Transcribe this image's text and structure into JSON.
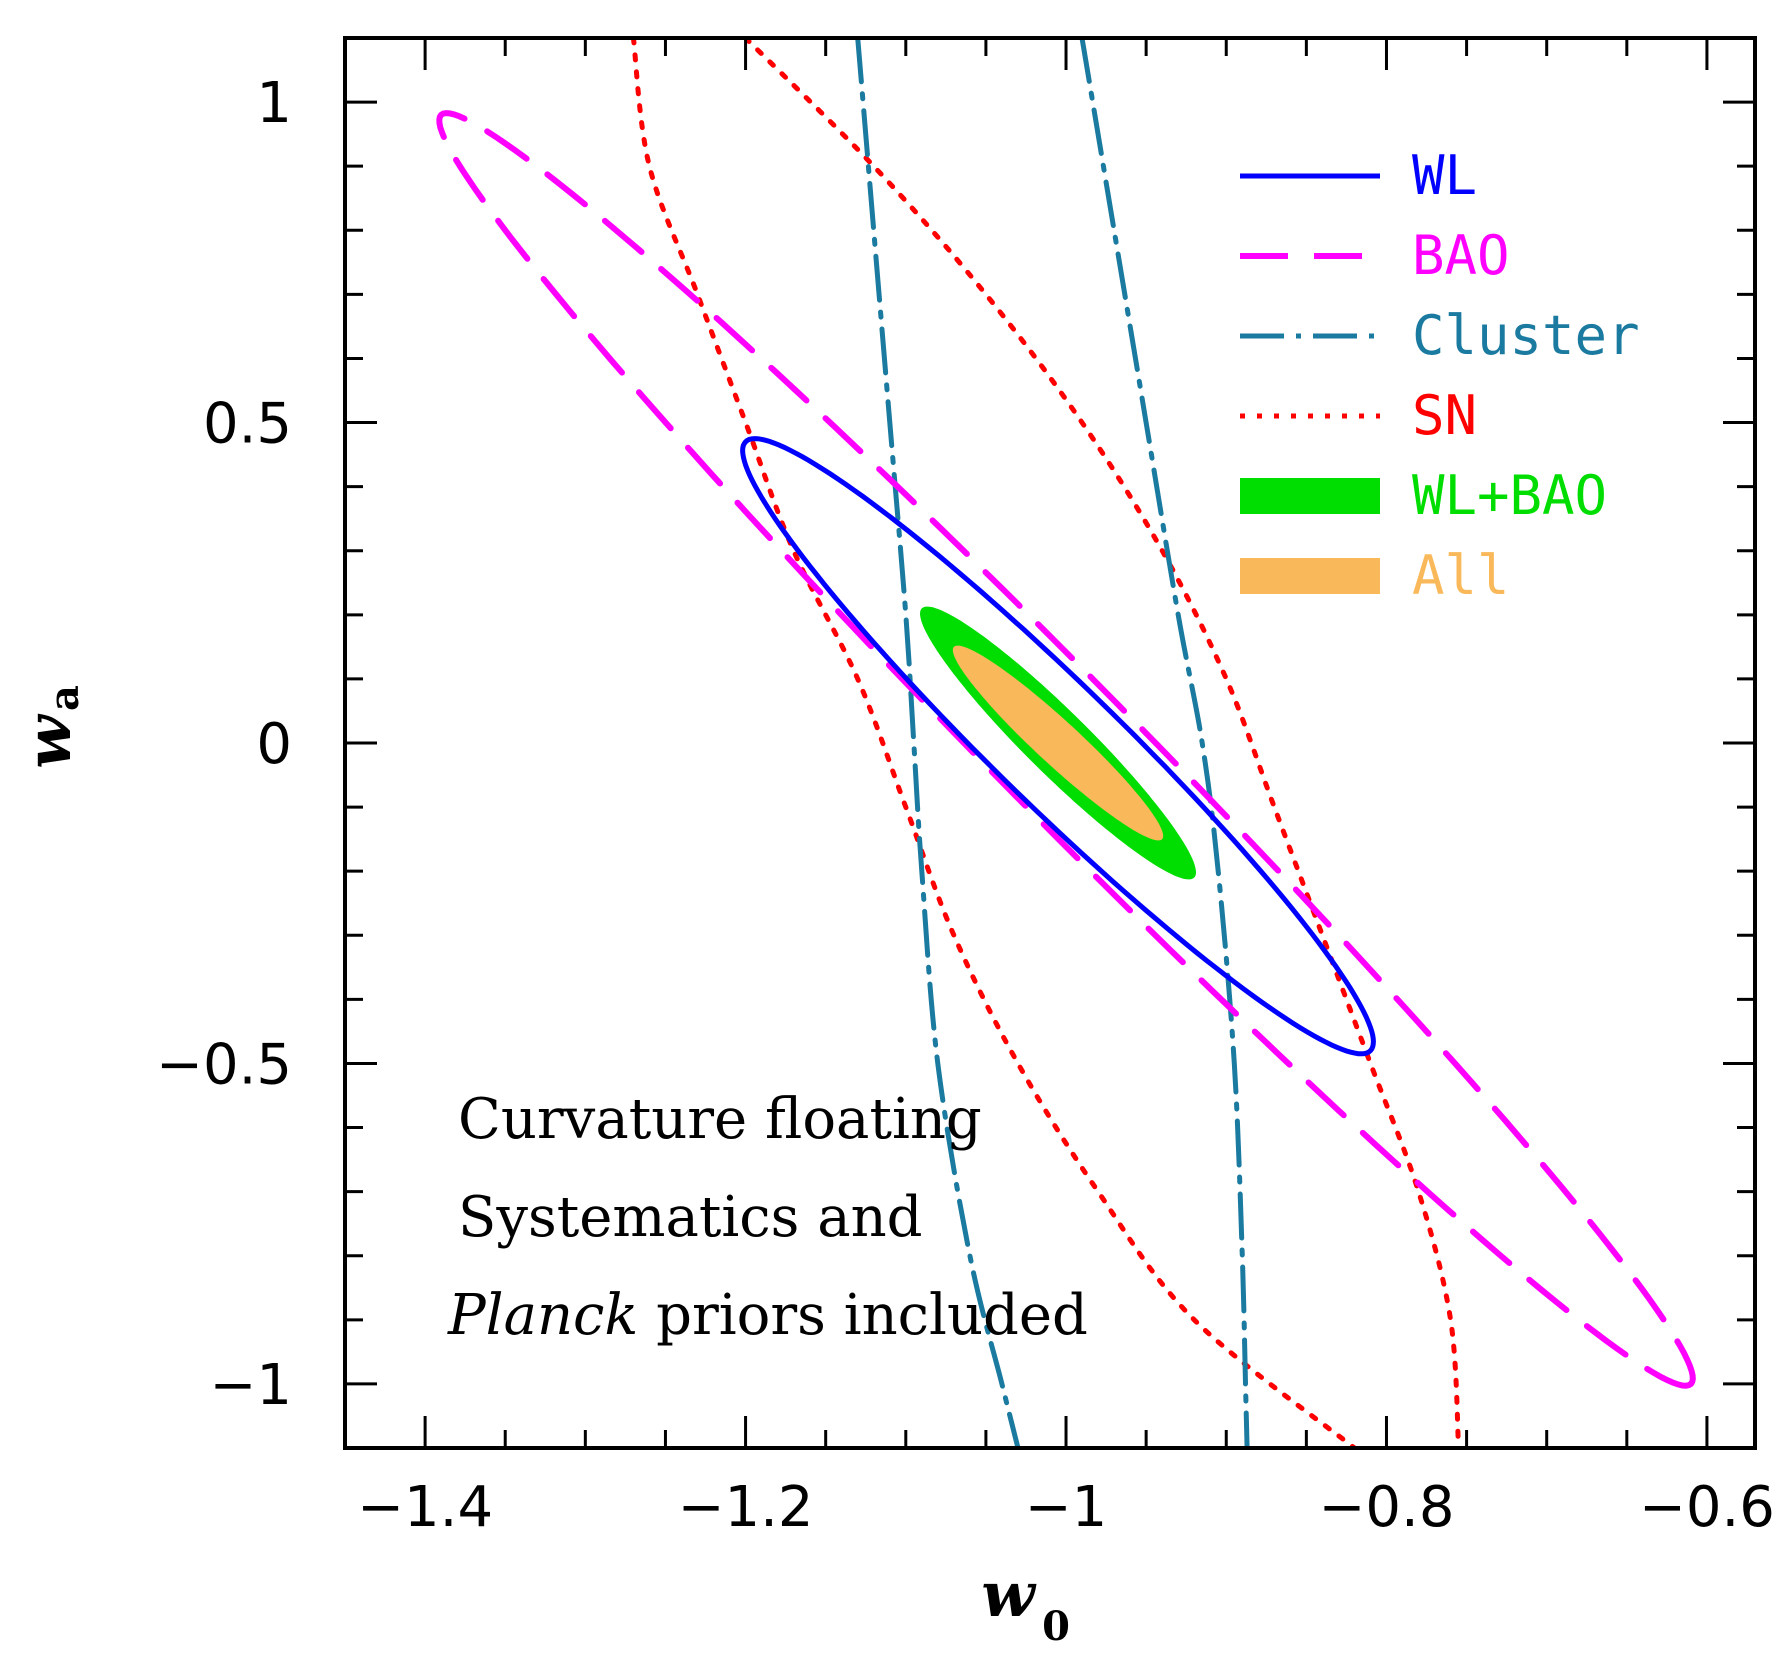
{
  "chart_data": {
    "type": "contour",
    "xlabel": "w",
    "xlabel_sub": "0",
    "ylabel": "w",
    "ylabel_sub": "a",
    "xlim": [
      -1.45,
      -0.57
    ],
    "ylim": [
      -1.1,
      1.1
    ],
    "xticks": [
      -1.4,
      -1.2,
      -1.0,
      -0.8,
      -0.6
    ],
    "xtick_labels": [
      "−1.4",
      "−1.2",
      "−1",
      "−0.8",
      "−0.6"
    ],
    "yticks": [
      1.0,
      0.5,
      0.0,
      -0.5,
      -1.0
    ],
    "ytick_labels": [
      "1",
      "0.5",
      "0",
      "−0.5",
      "−1"
    ],
    "legend_position": "top-right",
    "series": [
      {
        "name": "WL",
        "color": "#0000ff",
        "style": "solid",
        "shape": "ellipse",
        "center": [
          -1.005,
          0.0
        ],
        "tip_upper": [
          -1.2,
          0.47
        ],
        "tip_lower": [
          -0.81,
          -0.48
        ],
        "minor_half_width_w0": 0.055
      },
      {
        "name": "BAO",
        "color": "#ff00ff",
        "style": "dashed",
        "shape": "ellipse",
        "center": [
          -1.0,
          -0.01
        ],
        "tip_upper": [
          -1.39,
          0.98
        ],
        "tip_lower": [
          -0.61,
          -1.0
        ],
        "minor_half_width_w0": 0.06
      },
      {
        "name": "Cluster",
        "color": "#1a7aa0",
        "style": "dashdot",
        "shape": "open-band",
        "left_curve": [
          [
            -1.13,
            1.1
          ],
          [
            -1.12,
            0.8
          ],
          [
            -1.11,
            0.5
          ],
          [
            -1.1,
            0.2
          ],
          [
            -1.095,
            0.0
          ],
          [
            -1.09,
            -0.2
          ],
          [
            -1.08,
            -0.5
          ],
          [
            -1.06,
            -0.8
          ],
          [
            -1.04,
            -1.0
          ],
          [
            -1.03,
            -1.1
          ]
        ],
        "right_curve": [
          [
            -0.99,
            1.1
          ],
          [
            -0.97,
            0.8
          ],
          [
            -0.95,
            0.5
          ],
          [
            -0.93,
            0.2
          ],
          [
            -0.915,
            0.0
          ],
          [
            -0.905,
            -0.2
          ],
          [
            -0.895,
            -0.5
          ],
          [
            -0.89,
            -0.8
          ],
          [
            -0.888,
            -1.0
          ],
          [
            -0.887,
            -1.1
          ]
        ]
      },
      {
        "name": "SN",
        "color": "#ff0000",
        "style": "dotted",
        "shape": "open-band",
        "left_curve": [
          [
            -1.27,
            1.1
          ],
          [
            -1.26,
            0.9
          ],
          [
            -1.23,
            0.7
          ],
          [
            -1.2,
            0.5
          ],
          [
            -1.17,
            0.3
          ],
          [
            -1.13,
            0.1
          ],
          [
            -1.1,
            -0.1
          ],
          [
            -1.07,
            -0.3
          ],
          [
            -1.03,
            -0.5
          ],
          [
            -0.98,
            -0.7
          ],
          [
            -0.92,
            -0.9
          ],
          [
            -0.82,
            -1.1
          ]
        ],
        "right_curve": [
          [
            -1.2,
            1.1
          ],
          [
            -1.12,
            0.9
          ],
          [
            -1.05,
            0.7
          ],
          [
            -0.99,
            0.5
          ],
          [
            -0.94,
            0.3
          ],
          [
            -0.9,
            0.1
          ],
          [
            -0.87,
            -0.1
          ],
          [
            -0.84,
            -0.3
          ],
          [
            -0.81,
            -0.5
          ],
          [
            -0.78,
            -0.7
          ],
          [
            -0.76,
            -0.9
          ],
          [
            -0.755,
            -1.1
          ]
        ]
      },
      {
        "name": "WL+BAO",
        "color": "#00dd00",
        "style": "filled",
        "shape": "ellipse",
        "center": [
          -1.005,
          0.0
        ],
        "tip_upper": [
          -1.09,
          0.21
        ],
        "tip_lower": [
          -0.92,
          -0.21
        ],
        "minor_half_width_w0": 0.028
      },
      {
        "name": "All",
        "color": "#f9b95a",
        "style": "filled",
        "shape": "ellipse",
        "center": [
          -1.005,
          0.0
        ],
        "tip_upper": [
          -1.07,
          0.15
        ],
        "tip_lower": [
          -0.94,
          -0.15
        ],
        "minor_half_width_w0": 0.02
      }
    ],
    "annotations": [
      {
        "text": "Curvature floating"
      },
      {
        "text": "Systematics and"
      },
      {
        "text_italic": "Planck",
        "text": " priors included"
      }
    ]
  }
}
